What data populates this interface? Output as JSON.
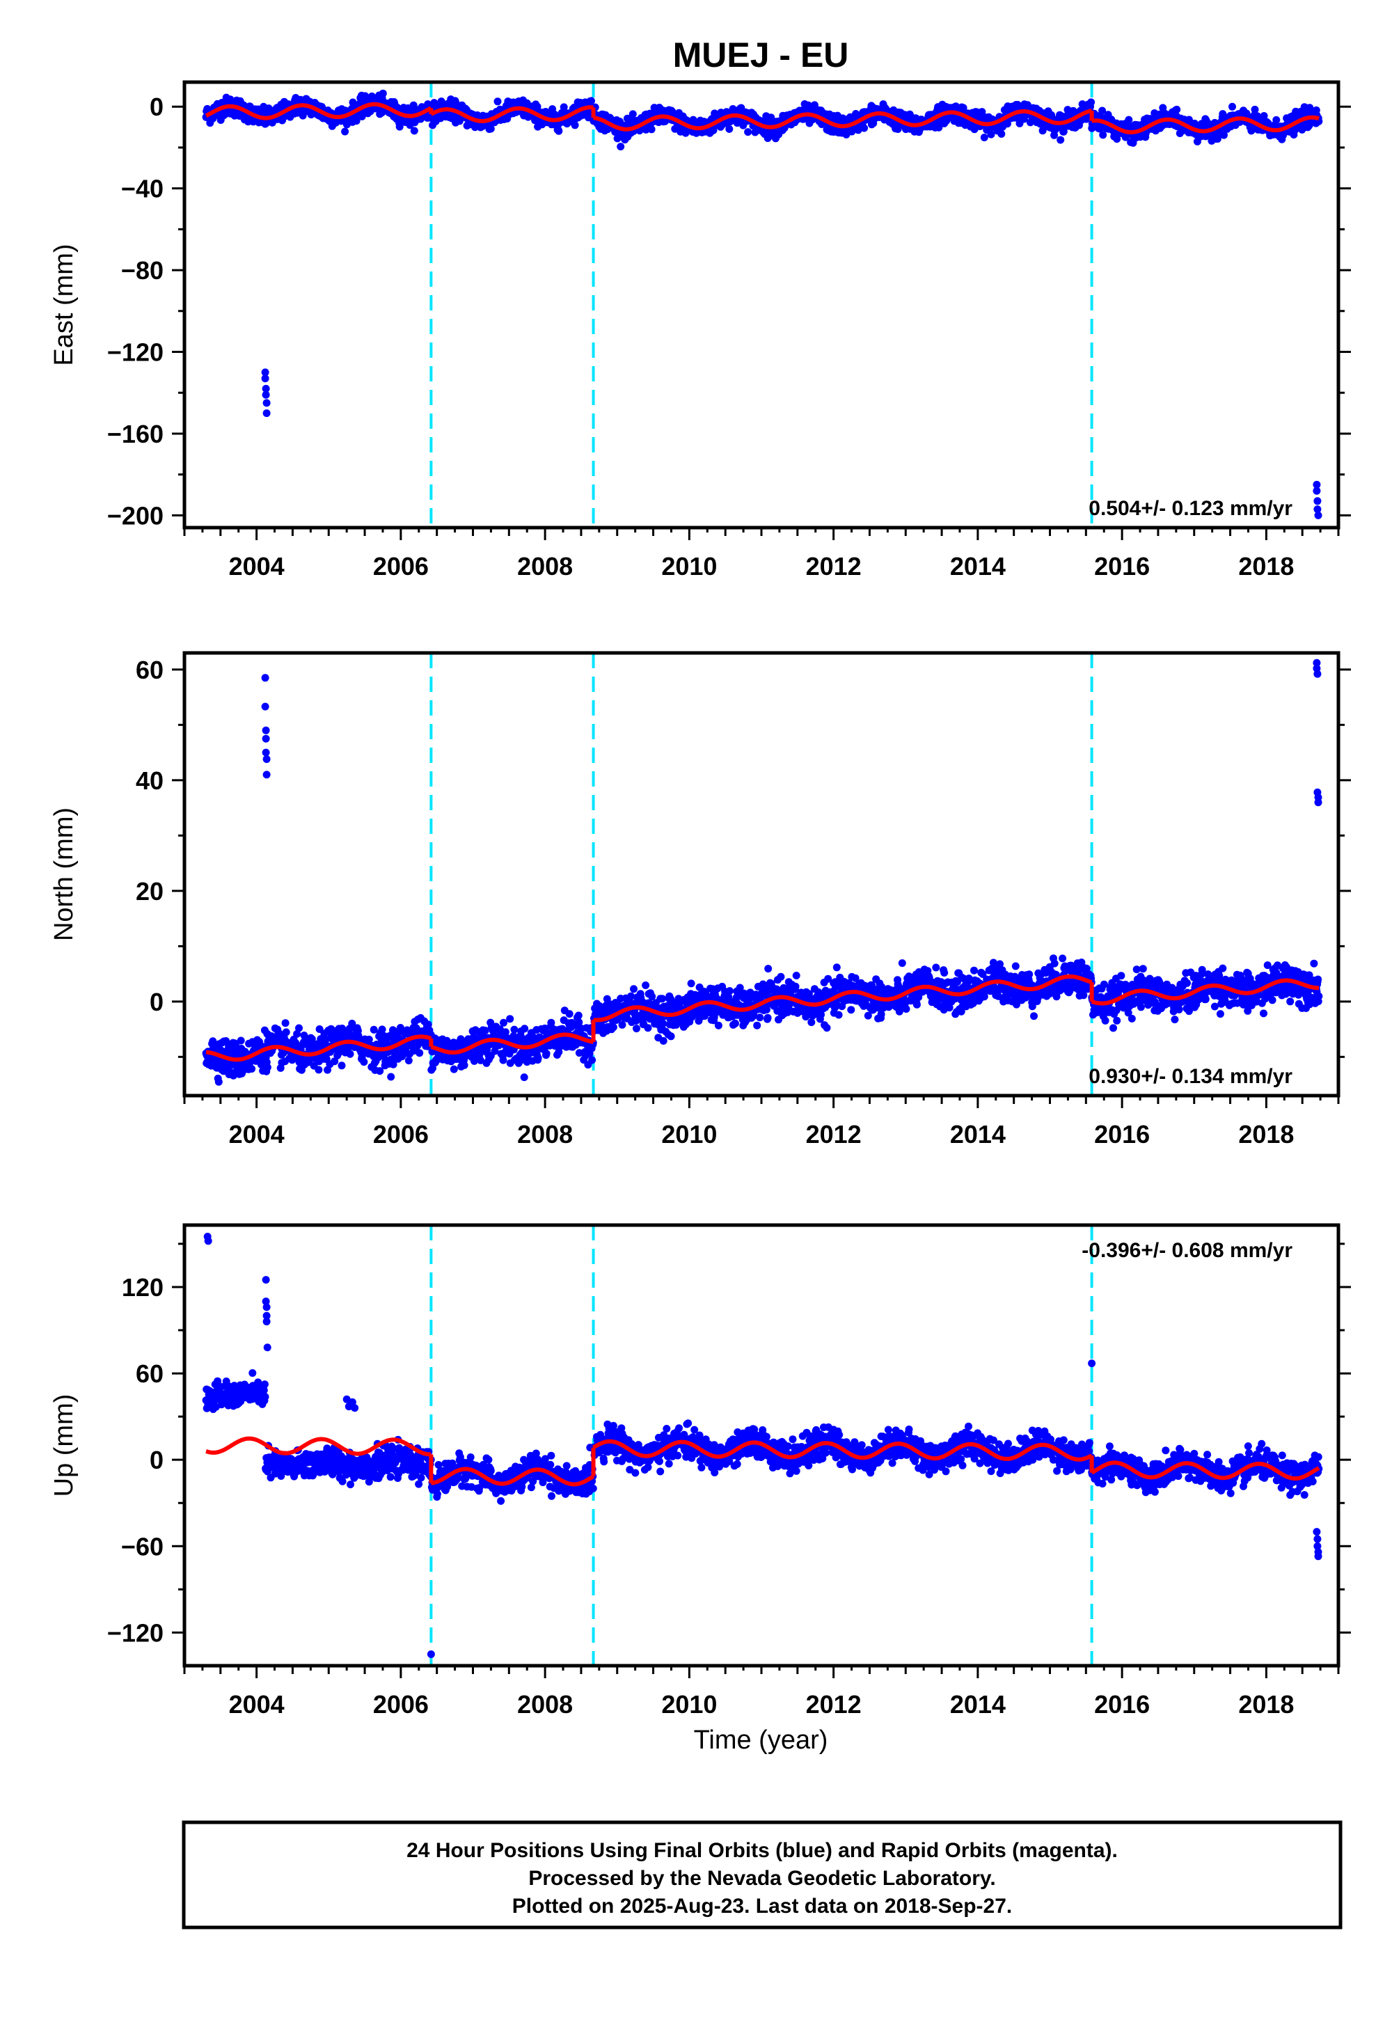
{
  "chart_data": {
    "type": "scatter",
    "title": "MUEJ - EU",
    "x_range": [
      2003.0,
      2019.0
    ],
    "x_ticks": [
      2004,
      2006,
      2008,
      2010,
      2012,
      2014,
      2016,
      2018
    ],
    "x_minor_step": 0.5,
    "xlabel": "Time (year)",
    "grid": false,
    "offset_lines": [
      2006.42,
      2008.67,
      2015.58
    ],
    "panels": [
      {
        "ylabel": "East (mm)",
        "ylim": [
          -206,
          12
        ],
        "yticks": [
          0,
          -40,
          -80,
          -120,
          -160,
          -200
        ],
        "y_minor_step": 20,
        "rate": "0.504+/- 0.123 mm/yr",
        "rate_position": "bottom-right",
        "model": {
          "base": -3,
          "trend": 0.504,
          "seasonal_amp": 3,
          "seasonal_phase": 0.62,
          "offsets": [
            {
              "t": 2006.42,
              "dy": -3
            },
            {
              "t": 2008.67,
              "dy": -5
            },
            {
              "t": 2015.58,
              "dy": -5
            }
          ],
          "start": 2003.3,
          "end": 2018.73
        },
        "scatter_spread": 2.2,
        "outliers": [
          {
            "x": 2004.12,
            "y": -130
          },
          {
            "x": 2004.12,
            "y": -133
          },
          {
            "x": 2004.13,
            "y": -138
          },
          {
            "x": 2004.13,
            "y": -141
          },
          {
            "x": 2004.14,
            "y": -145
          },
          {
            "x": 2004.14,
            "y": -150
          },
          {
            "x": 2018.7,
            "y": -185
          },
          {
            "x": 2018.7,
            "y": -188
          },
          {
            "x": 2018.71,
            "y": -193
          },
          {
            "x": 2018.71,
            "y": -197
          },
          {
            "x": 2018.72,
            "y": -200
          }
        ]
      },
      {
        "ylabel": "North (mm)",
        "ylim": [
          -17,
          63
        ],
        "yticks": [
          60,
          40,
          20,
          0
        ],
        "y_minor_step": 10,
        "rate": "0.930+/- 0.134 mm/yr",
        "rate_position": "bottom-right",
        "model": {
          "base": -10,
          "trend": 0.93,
          "seasonal_amp": 0.9,
          "seasonal_phase": 0.0,
          "offsets": [
            {
              "t": 2006.42,
              "dy": -1.5
            },
            {
              "t": 2008.67,
              "dy": 4
            },
            {
              "t": 2015.58,
              "dy": -3.5
            }
          ],
          "start": 2003.3,
          "end": 2018.73
        },
        "scatter_spread": 1.6,
        "outliers": [
          {
            "x": 2004.12,
            "y": 58.5
          },
          {
            "x": 2004.12,
            "y": 53.3
          },
          {
            "x": 2004.13,
            "y": 49
          },
          {
            "x": 2004.13,
            "y": 47.5
          },
          {
            "x": 2004.13,
            "y": 45
          },
          {
            "x": 2004.14,
            "y": 43.8
          },
          {
            "x": 2004.14,
            "y": 41
          },
          {
            "x": 2018.7,
            "y": 61.2
          },
          {
            "x": 2018.7,
            "y": 60.2
          },
          {
            "x": 2018.71,
            "y": 59.2
          },
          {
            "x": 2018.71,
            "y": 37.8
          },
          {
            "x": 2018.72,
            "y": 36.9
          },
          {
            "x": 2018.72,
            "y": 36.0
          }
        ]
      },
      {
        "ylabel": "Up (mm)",
        "ylim": [
          -143,
          163
        ],
        "yticks": [
          120,
          60,
          0,
          -60,
          -120
        ],
        "y_minor_step": 30,
        "rate": "-0.396+/- 0.608 mm/yr",
        "rate_position": "top-right",
        "model": {
          "base": 10,
          "trend": -0.396,
          "seasonal_amp": 5,
          "seasonal_phase": 0.35,
          "offsets": [
            {
              "t": 2006.42,
              "dy": -20
            },
            {
              "t": 2008.67,
              "dy": 20
            },
            {
              "t": 2015.58,
              "dy": -12
            }
          ],
          "start": 2003.3,
          "end": 2018.73
        },
        "scatter_spread": 5,
        "extra_segments": [
          {
            "from": 2003.3,
            "to": 2004.12,
            "y": 45,
            "spread": 7
          },
          {
            "from": 2004.12,
            "to": 2006.42,
            "y": -3,
            "spread": 8
          }
        ],
        "outliers": [
          {
            "x": 2003.32,
            "y": 155
          },
          {
            "x": 2003.33,
            "y": 152
          },
          {
            "x": 2004.13,
            "y": 125
          },
          {
            "x": 2004.13,
            "y": 110
          },
          {
            "x": 2004.14,
            "y": 106
          },
          {
            "x": 2004.14,
            "y": 100
          },
          {
            "x": 2004.14,
            "y": 96
          },
          {
            "x": 2004.15,
            "y": 78
          },
          {
            "x": 2005.25,
            "y": 42
          },
          {
            "x": 2005.28,
            "y": 37
          },
          {
            "x": 2005.33,
            "y": 40
          },
          {
            "x": 2005.36,
            "y": 36
          },
          {
            "x": 2006.42,
            "y": -135
          },
          {
            "x": 2015.58,
            "y": 67
          },
          {
            "x": 2018.7,
            "y": -50
          },
          {
            "x": 2018.71,
            "y": -55
          },
          {
            "x": 2018.71,
            "y": -60
          },
          {
            "x": 2018.72,
            "y": -64
          },
          {
            "x": 2018.72,
            "y": -67
          }
        ]
      }
    ],
    "colors": {
      "points": "#0000ff",
      "model": "#ff0000",
      "offsets": "#00e5ff",
      "frame": "#000000"
    }
  },
  "footer": {
    "line1": "24 Hour Positions Using Final Orbits (blue) and Rapid Orbits (magenta).",
    "line2": "Processed by the Nevada Geodetic Laboratory.",
    "line3": "Plotted on 2025-Aug-23. Last data on 2018-Sep-27."
  }
}
